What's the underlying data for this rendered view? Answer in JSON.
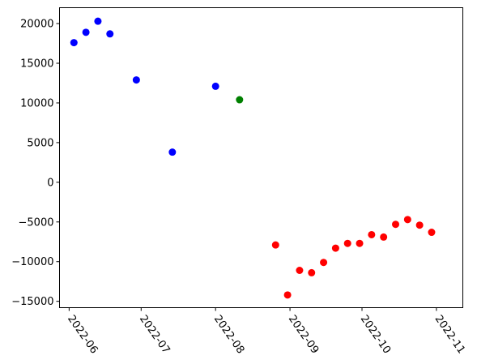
{
  "chart_data": {
    "type": "scatter",
    "title": "",
    "xlabel": "",
    "ylabel": "",
    "x_axis": "date",
    "xlim": [
      "2022-05-28",
      "2022-11-12"
    ],
    "ylim": [
      -15800,
      22000
    ],
    "x_ticks": [
      {
        "date": "2022-06-01",
        "label": "2022-06"
      },
      {
        "date": "2022-07-01",
        "label": "2022-07"
      },
      {
        "date": "2022-08-01",
        "label": "2022-08"
      },
      {
        "date": "2022-09-01",
        "label": "2022-09"
      },
      {
        "date": "2022-10-01",
        "label": "2022-10"
      },
      {
        "date": "2022-11-01",
        "label": "2022-11"
      }
    ],
    "y_ticks": [
      {
        "value": 20000,
        "label": "20000"
      },
      {
        "value": 15000,
        "label": "15000"
      },
      {
        "value": 10000,
        "label": "10000"
      },
      {
        "value": 5000,
        "label": "5000"
      },
      {
        "value": 0,
        "label": "0"
      },
      {
        "value": -5000,
        "label": "−5000"
      },
      {
        "value": -10000,
        "label": "−10000"
      },
      {
        "value": -15000,
        "label": "−15000"
      }
    ],
    "grid": false,
    "legend": false,
    "series": [
      {
        "color": "#0000ff",
        "points": [
          {
            "x": "2022-06-03",
            "y": 17600
          },
          {
            "x": "2022-06-08",
            "y": 18900
          },
          {
            "x": "2022-06-13",
            "y": 20300
          },
          {
            "x": "2022-06-18",
            "y": 18700
          },
          {
            "x": "2022-06-29",
            "y": 12900
          },
          {
            "x": "2022-07-14",
            "y": 3800
          },
          {
            "x": "2022-08-01",
            "y": 12100
          }
        ]
      },
      {
        "color": "#008000",
        "points": [
          {
            "x": "2022-08-11",
            "y": 10400
          }
        ]
      },
      {
        "color": "#ff0000",
        "points": [
          {
            "x": "2022-08-26",
            "y": -7900
          },
          {
            "x": "2022-08-31",
            "y": -14200
          },
          {
            "x": "2022-09-05",
            "y": -11100
          },
          {
            "x": "2022-09-10",
            "y": -11400
          },
          {
            "x": "2022-09-15",
            "y": -10100
          },
          {
            "x": "2022-09-20",
            "y": -8300
          },
          {
            "x": "2022-09-25",
            "y": -7700
          },
          {
            "x": "2022-09-30",
            "y": -7700
          },
          {
            "x": "2022-10-05",
            "y": -6600
          },
          {
            "x": "2022-10-10",
            "y": -6900
          },
          {
            "x": "2022-10-15",
            "y": -5300
          },
          {
            "x": "2022-10-20",
            "y": -4700
          },
          {
            "x": "2022-10-25",
            "y": -5400
          },
          {
            "x": "2022-10-30",
            "y": -6300
          }
        ]
      }
    ]
  }
}
